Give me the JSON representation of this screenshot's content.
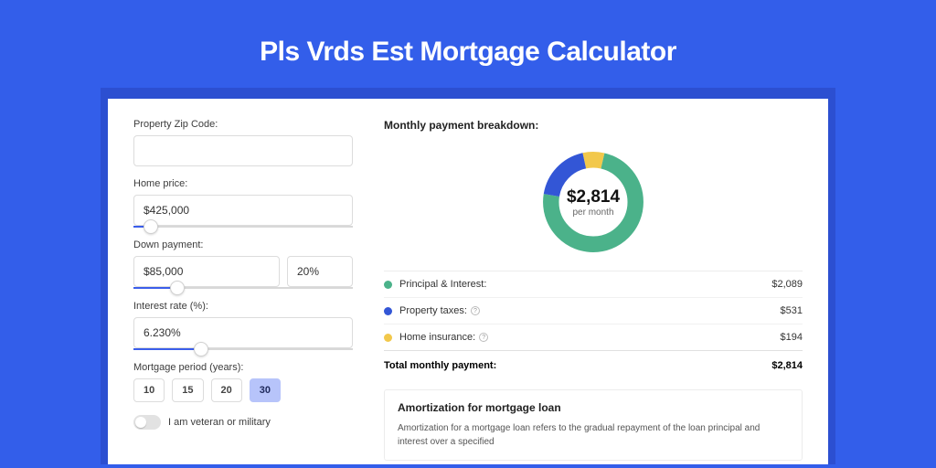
{
  "page": {
    "title": "Pls Vrds Est Mortgage Calculator",
    "bg_color": "#335eea",
    "card_shadow_color": "#2c4fd1"
  },
  "form": {
    "zip": {
      "label": "Property Zip Code:",
      "value": ""
    },
    "home_price": {
      "label": "Home price:",
      "value": "$425,000",
      "slider_pct": 8
    },
    "down_payment": {
      "label": "Down payment:",
      "value": "$85,000",
      "pct_value": "20%",
      "slider_pct": 20
    },
    "interest_rate": {
      "label": "Interest rate (%):",
      "value": "6.230%",
      "slider_pct": 31
    },
    "period": {
      "label": "Mortgage period (years):",
      "options": [
        "10",
        "15",
        "20",
        "30"
      ],
      "active_index": 3
    },
    "veteran": {
      "label": "I am veteran or military",
      "checked": false
    }
  },
  "breakdown": {
    "title": "Monthly payment breakdown:",
    "center_value": "$2,814",
    "center_label": "per month",
    "items": [
      {
        "label": "Principal & Interest:",
        "value": "$2,089",
        "color": "#4bb28a",
        "pct": 74,
        "info": false
      },
      {
        "label": "Property taxes:",
        "value": "$531",
        "color": "#3356d6",
        "pct": 19,
        "info": true
      },
      {
        "label": "Home insurance:",
        "value": "$194",
        "color": "#f2c84b",
        "pct": 7,
        "info": true
      }
    ],
    "total": {
      "label": "Total monthly payment:",
      "value": "$2,814"
    }
  },
  "amortization": {
    "title": "Amortization for mortgage loan",
    "text": "Amortization for a mortgage loan refers to the gradual repayment of the loan principal and interest over a specified"
  }
}
